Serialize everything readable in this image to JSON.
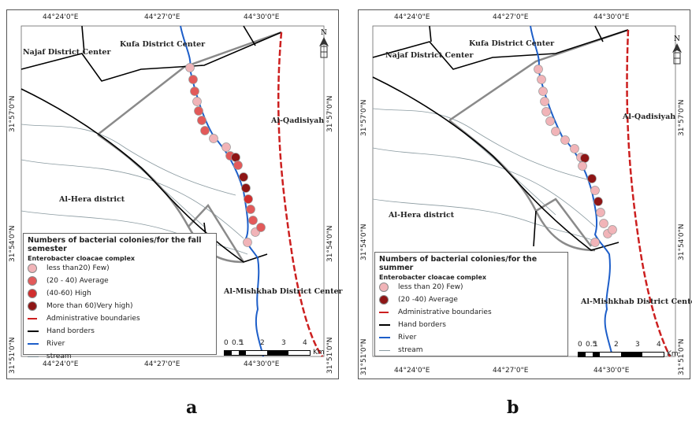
{
  "captions": {
    "a": "a",
    "b": "b"
  },
  "colors": {
    "few": "#f1b4b8",
    "average": "#e25a5a",
    "high": "#d12e2e",
    "very_high": "#8e1515",
    "admin_boundary": "#cc1f1f",
    "river": "#1d5ec9",
    "stream": "#8a9aa0",
    "hand_border": "#000000",
    "road": "#8a8a8a"
  },
  "panels": [
    {
      "id": "a",
      "top_coords": [
        "44°24'0\"E",
        "44°27'0\"E",
        "44°30'0\"E"
      ],
      "bottom_coords": [
        "44°24'0\"E",
        "44°27'0\"E",
        "44°30'0\"E"
      ],
      "side_coords": [
        "31°57'0\"N",
        "31°54'0\"N",
        "31°51'0\"N"
      ],
      "places": {
        "najaf": "Najaf District Center",
        "kufa": "Kufa District Center",
        "qadisiyah": "Al-Qadisiyah",
        "hera": "Al-Hera district",
        "mishkhab": "Al-Mishkhab District Center"
      },
      "north": "N",
      "legend": {
        "title": "Numbers of bacterial colonies/for the fall semester",
        "subtitle": "Enterobacter cloacae complex",
        "items": [
          {
            "label": "less than20) Few)",
            "symbol": "dot",
            "color_key": "few"
          },
          {
            "label": "(20 - 40) Average",
            "symbol": "dot",
            "color_key": "average"
          },
          {
            "label": "(40-60) High",
            "symbol": "dot",
            "color_key": "high"
          },
          {
            "label": "More than 60)Very high)",
            "symbol": "dot",
            "color_key": "very_high"
          },
          {
            "label": "Administrative boundaries",
            "symbol": "dash"
          },
          {
            "label": "Hand borders",
            "symbol": "bline"
          },
          {
            "label": "River",
            "symbol": "river"
          },
          {
            "label": "stream",
            "symbol": "stream"
          }
        ]
      },
      "scale": {
        "ticks": [
          "0",
          "0.5",
          "1",
          "2",
          "3",
          "4"
        ],
        "unit": "Km"
      },
      "samples": [
        "few",
        "average",
        "average",
        "few",
        "average",
        "average",
        "average",
        "few",
        "few",
        "average",
        "very_high",
        "average",
        "very_high",
        "very_high",
        "high",
        "average",
        "average",
        "few",
        "average",
        "few"
      ]
    },
    {
      "id": "b",
      "top_coords": [
        "44°24'0\"E",
        "44°27'0\"E",
        "44°30'0\"E"
      ],
      "bottom_coords": [
        "44°24'0\"E",
        "44°27'0\"E",
        "44°30'0\"E"
      ],
      "side_coords": [
        "31°57'0\"N",
        "31°54'0\"N",
        "31°51'0\"N"
      ],
      "places": {
        "najaf": "Najaf District Center",
        "kufa": "Kufa District Center",
        "qadisiyah": "Al-Qadisiyah",
        "hera": "Al-Hera district",
        "mishkhab": "Al-Mishkhab District Center"
      },
      "north": "N",
      "legend": {
        "title": "Numbers of bacterial colonies/for the summer",
        "subtitle": "Enterobacter cloacae complex",
        "items": [
          {
            "label": "less than 20) Few)",
            "symbol": "dot",
            "color_key": "few"
          },
          {
            "label": "(20 -40) Average",
            "symbol": "dot",
            "color_key": "very_high"
          },
          {
            "label": "Administrative boundaries",
            "symbol": "dash"
          },
          {
            "label": "Hand borders",
            "symbol": "bline"
          },
          {
            "label": "River",
            "symbol": "river"
          },
          {
            "label": "stream",
            "symbol": "stream"
          }
        ]
      },
      "scale": {
        "ticks": [
          "0",
          "0.5",
          "1",
          "2",
          "3",
          "4"
        ],
        "unit": "Km"
      },
      "samples": [
        "few",
        "few",
        "few",
        "few",
        "few",
        "few",
        "few",
        "few",
        "few",
        "few",
        "very_high",
        "few",
        "very_high",
        "few",
        "very_high",
        "few",
        "few",
        "few",
        "few",
        "few"
      ]
    }
  ]
}
